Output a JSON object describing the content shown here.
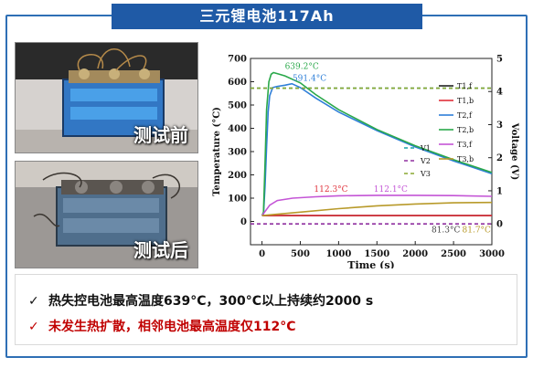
{
  "banner": {
    "title": "三元锂电池117Ah"
  },
  "photos": [
    {
      "caption": "测试前"
    },
    {
      "caption": "测试后"
    }
  ],
  "bullets": [
    {
      "mark": "✓",
      "text": "热失控电池最高温度639°C，300°C以上持续约2000 s",
      "color": "#111111"
    },
    {
      "mark": "✓",
      "text": "未发生热扩散，相邻电池最高温度仅112°C",
      "color": "#c00000"
    }
  ],
  "chart_data": {
    "type": "line",
    "xlabel": "Time (s)",
    "ylabel": "Temperature (°C)",
    "y2label": "Voltage (V)",
    "xlim": [
      -150,
      3000
    ],
    "ylim": [
      -100,
      700
    ],
    "y2lim": [
      -0.63,
      5
    ],
    "x_ticks": [
      0,
      500,
      1000,
      1500,
      2000,
      2500,
      3000
    ],
    "y_ticks": [
      0,
      100,
      200,
      300,
      400,
      500,
      600,
      700
    ],
    "y2_ticks": [
      0,
      1,
      2,
      3,
      4,
      5
    ],
    "series": [
      {
        "name": "T1,f",
        "color": "#222222",
        "axis": "temp",
        "points": [
          [
            0,
            25
          ],
          [
            3000,
            25
          ]
        ]
      },
      {
        "name": "T1,b",
        "color": "#e0303a",
        "axis": "temp",
        "points": [
          [
            0,
            25
          ],
          [
            3000,
            25
          ]
        ]
      },
      {
        "name": "T2,f",
        "color": "#2f7fd8",
        "axis": "temp",
        "points": [
          [
            0,
            25
          ],
          [
            20,
            30
          ],
          [
            40,
            150
          ],
          [
            60,
            320
          ],
          [
            80,
            470
          ],
          [
            100,
            540
          ],
          [
            140,
            575
          ],
          [
            200,
            580
          ],
          [
            300,
            585
          ],
          [
            391,
            591.4
          ],
          [
            500,
            575
          ],
          [
            700,
            530
          ],
          [
            1000,
            470
          ],
          [
            1500,
            390
          ],
          [
            2000,
            320
          ],
          [
            2500,
            260
          ],
          [
            3000,
            205
          ]
        ]
      },
      {
        "name": "T2,b",
        "color": "#2aa84a",
        "axis": "temp",
        "points": [
          [
            0,
            25
          ],
          [
            20,
            40
          ],
          [
            40,
            250
          ],
          [
            60,
            480
          ],
          [
            90,
            600
          ],
          [
            120,
            632
          ],
          [
            150,
            639.2
          ],
          [
            200,
            635
          ],
          [
            300,
            625
          ],
          [
            500,
            595
          ],
          [
            700,
            545
          ],
          [
            1000,
            480
          ],
          [
            1500,
            395
          ],
          [
            2000,
            325
          ],
          [
            2500,
            265
          ],
          [
            3000,
            210
          ]
        ]
      },
      {
        "name": "T3,f",
        "color": "#c455d6",
        "axis": "temp",
        "points": [
          [
            0,
            25
          ],
          [
            100,
            70
          ],
          [
            200,
            90
          ],
          [
            400,
            100
          ],
          [
            700,
            106
          ],
          [
            1000,
            110
          ],
          [
            1500,
            112.1
          ],
          [
            2000,
            112
          ],
          [
            2500,
            111
          ],
          [
            3000,
            108
          ]
        ]
      },
      {
        "name": "T3,b",
        "color": "#b89a2a",
        "axis": "temp",
        "points": [
          [
            0,
            25
          ],
          [
            500,
            40
          ],
          [
            1000,
            55
          ],
          [
            1500,
            67
          ],
          [
            2000,
            75
          ],
          [
            2500,
            80
          ],
          [
            3000,
            81.7
          ]
        ]
      },
      {
        "name": "V1",
        "color": "#19a0a8",
        "axis": "volt",
        "dashed": true,
        "points": [
          [
            -150,
            4.1
          ],
          [
            0,
            4.1
          ],
          [
            30,
            4.1
          ],
          [
            3000,
            4.1
          ]
        ]
      },
      {
        "name": "V2",
        "color": "#9030a0",
        "axis": "volt",
        "dashed": true,
        "points": [
          [
            -150,
            0
          ],
          [
            3000,
            0
          ]
        ]
      },
      {
        "name": "V3",
        "color": "#8aa830",
        "axis": "volt",
        "dashed": true,
        "points": [
          [
            -150,
            4.1
          ],
          [
            3000,
            4.1
          ]
        ]
      }
    ],
    "annotations": [
      {
        "text": "639.2°C",
        "x": 520,
        "y": 655,
        "color": "#2aa84a"
      },
      {
        "text": "591.4°C",
        "x": 620,
        "y": 603,
        "color": "#2f7fd8"
      },
      {
        "text": "112.3°C",
        "x": 900,
        "y": 127,
        "color": "#e0303a"
      },
      {
        "text": "112.1°C",
        "x": 1680,
        "y": 127,
        "color": "#c455d6"
      },
      {
        "text": "81.3°C",
        "x": 2400,
        "y": -47,
        "color": "#444444"
      },
      {
        "text": "81.7°C",
        "x": 2800,
        "y": -47,
        "color": "#b89a2a"
      }
    ]
  }
}
